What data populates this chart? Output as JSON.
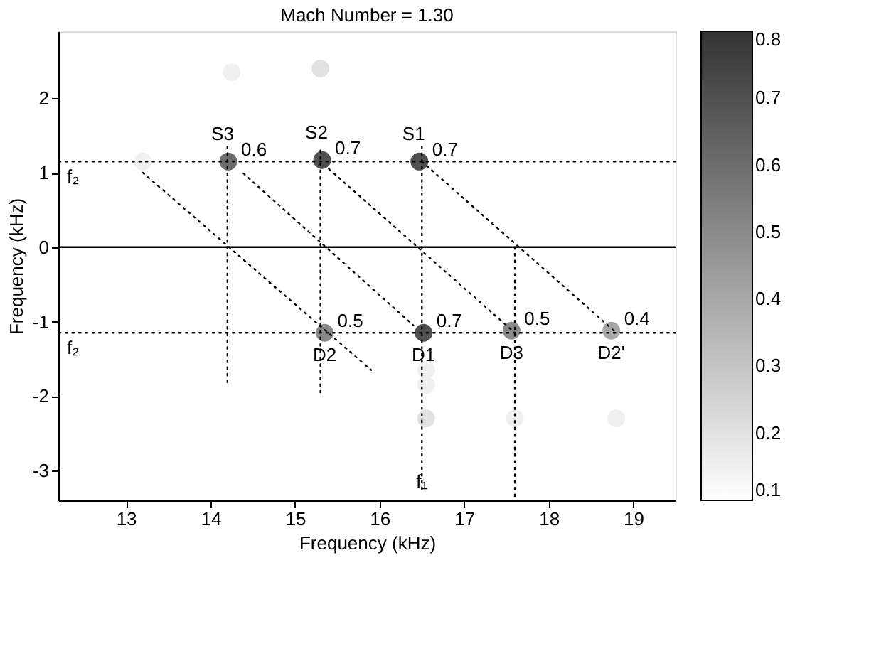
{
  "chart_data": {
    "type": "scatter",
    "title": "Mach Number = 1.30",
    "xlabel": "Frequency (kHz)",
    "ylabel": "Frequency (kHz)",
    "xlim": [
      12.2,
      19.5
    ],
    "ylim": [
      -3.4,
      2.9
    ],
    "xticks": [
      13,
      14,
      15,
      16,
      17,
      18,
      19
    ],
    "yticks": [
      -3,
      -2,
      -1,
      0,
      1,
      2
    ],
    "grid": false,
    "clim": [
      0.1,
      0.8
    ],
    "cticks": [
      0.1,
      0.2,
      0.3,
      0.4,
      0.5,
      0.6,
      0.7,
      0.8
    ],
    "series": [
      {
        "marker": "circle",
        "x": [
          14.21,
          15.32,
          16.47,
          15.35,
          16.52,
          17.56,
          18.74,
          14.25,
          15.3,
          13.2,
          16.55,
          16.55,
          16.55,
          17.6,
          18.8
        ],
        "values": [
          1.15,
          1.17,
          1.15,
          -1.15,
          -1.15,
          -1.12,
          -1.12,
          2.35,
          2.4,
          1.15,
          -1.65,
          -1.85,
          -2.3,
          -2.3,
          -2.3
        ],
        "cvalues": [
          0.6,
          0.7,
          0.7,
          0.5,
          0.7,
          0.5,
          0.4,
          0.15,
          0.2,
          0.15,
          0.15,
          0.15,
          0.2,
          0.15,
          0.15
        ],
        "colors": [
          "#6d6d6d",
          "#505050",
          "#505050",
          "#8a8a8a",
          "#505050",
          "#8a8a8a",
          "#a8a8a8",
          "#f0f0f0",
          "#e2e2e2",
          "#f0f0f0",
          "#f0f0f0",
          "#f0f0f0",
          "#e2e2e2",
          "#f0f0f0",
          "#f0f0f0"
        ]
      },
      {
        "type": "line",
        "line_style": "dotted",
        "color": "#000000",
        "x": [
          14.2,
          14.2
        ],
        "values": [
          1.35,
          -1.85
        ]
      },
      {
        "type": "line",
        "line_style": "dotted",
        "color": "#000000",
        "x": [
          15.3,
          15.3
        ],
        "values": [
          1.3,
          -1.95
        ]
      },
      {
        "type": "line",
        "line_style": "dotted",
        "color": "#000000",
        "x": [
          16.5,
          16.5
        ],
        "values": [
          1.35,
          -3.3
        ],
        "name": "f₁"
      },
      {
        "type": "line",
        "line_style": "dotted",
        "color": "#000000",
        "x": [
          17.6,
          17.6
        ],
        "values": [
          0,
          -3.35
        ]
      },
      {
        "type": "line",
        "line_style": "dotted",
        "color": "#000000",
        "x": [
          13.2,
          15.9
        ],
        "values": [
          1.0,
          -1.65
        ]
      },
      {
        "type": "line",
        "line_style": "dotted",
        "color": "#000000",
        "x": [
          14.39,
          16.4
        ],
        "values": [
          0.99,
          -1.05
        ]
      },
      {
        "type": "line",
        "line_style": "dotted",
        "color": "#000000",
        "x": [
          15.4,
          17.6
        ],
        "values": [
          1.05,
          -1.15
        ]
      },
      {
        "type": "line",
        "line_style": "dotted",
        "color": "#000000",
        "x": [
          16.5,
          18.8
        ],
        "values": [
          1.15,
          -1.15
        ]
      }
    ],
    "ref_lines": [
      {
        "axis": "y",
        "value": 0,
        "line_style": "solid",
        "color": "#000000"
      },
      {
        "axis": "y",
        "value": 1.15,
        "line_style": "dotted",
        "color": "#000000",
        "label": "f₂"
      },
      {
        "axis": "y",
        "value": -1.15,
        "line_style": "dotted",
        "color": "#000000",
        "label": "f₂"
      }
    ],
    "annotations": [
      {
        "text": "S3",
        "x": 14.21,
        "y": 1.15
      },
      {
        "text": "S2",
        "x": 15.32,
        "y": 1.17
      },
      {
        "text": "S1",
        "x": 16.47,
        "y": 1.15
      },
      {
        "text": "D2",
        "x": 15.35,
        "y": -1.15
      },
      {
        "text": "D1",
        "x": 16.52,
        "y": -1.15
      },
      {
        "text": "D3",
        "x": 17.56,
        "y": -1.12
      },
      {
        "text": "D2'",
        "x": 18.74,
        "y": -1.12
      },
      {
        "text": "0.6",
        "x": 14.21,
        "y": 1.15
      },
      {
        "text": "0.7",
        "x": 15.32,
        "y": 1.17
      },
      {
        "text": "0.7",
        "x": 16.47,
        "y": 1.15
      },
      {
        "text": "0.5",
        "x": 15.35,
        "y": -1.15
      },
      {
        "text": "0.7",
        "x": 16.52,
        "y": -1.15
      },
      {
        "text": "0.5",
        "x": 17.56,
        "y": -1.12
      },
      {
        "text": "0.4",
        "x": 18.74,
        "y": -1.12
      }
    ]
  }
}
